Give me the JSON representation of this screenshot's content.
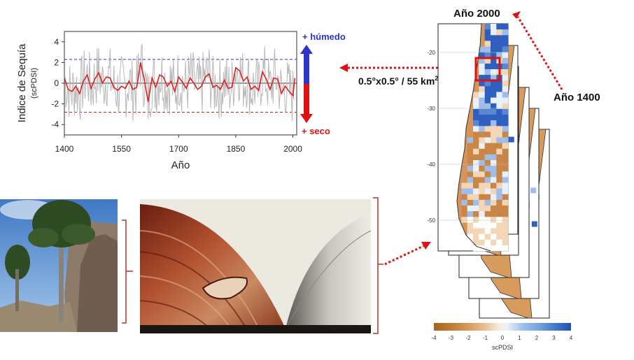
{
  "chart_data": {
    "type": "line",
    "ylabel": "Indice de Sequía",
    "ylabel_sub": "(scPDSI)",
    "xlabel": "Año",
    "xlim": [
      1400,
      2010
    ],
    "ylim": [
      -5,
      5
    ],
    "x_ticks": [
      1400,
      1550,
      1700,
      1850,
      2000
    ],
    "y_ticks": [
      4,
      2,
      0,
      -2,
      -4
    ],
    "wet_threshold": 2.3,
    "dry_threshold": -2.8,
    "wet_label": "+ húmedo",
    "dry_label": "+ seco",
    "series": [
      {
        "color": "#e02020",
        "x": [
          1400,
          1410,
          1420,
          1430,
          1440,
          1450,
          1460,
          1470,
          1480,
          1490,
          1500,
          1510,
          1520,
          1530,
          1540,
          1550,
          1560,
          1570,
          1580,
          1590,
          1600,
          1610,
          1620,
          1630,
          1640,
          1650,
          1660,
          1670,
          1680,
          1690,
          1700,
          1710,
          1720,
          1730,
          1740,
          1750,
          1760,
          1770,
          1780,
          1790,
          1800,
          1810,
          1820,
          1830,
          1840,
          1850,
          1860,
          1870,
          1880,
          1890,
          1900,
          1910,
          1920,
          1930,
          1940,
          1950,
          1960,
          1970,
          1980,
          1990,
          2000,
          2005
        ],
        "y": [
          0.5,
          -0.6,
          -0.8,
          -0.3,
          -1.0,
          0.2,
          0.8,
          -0.5,
          0.4,
          1.0,
          0.0,
          0.6,
          0.5,
          -0.4,
          -0.7,
          -0.3,
          -0.5,
          0.2,
          -0.6,
          -0.4,
          2.0,
          0.3,
          -1.8,
          0.5,
          -0.4,
          0.8,
          0.6,
          -0.3,
          0.2,
          -0.8,
          0.6,
          0.1,
          -0.5,
          0.5,
          0.0,
          -0.6,
          -0.3,
          0.6,
          0.9,
          -0.4,
          -0.2,
          -0.6,
          0.3,
          -0.5,
          -0.4,
          1.5,
          1.2,
          0.2,
          0.6,
          -0.6,
          -0.3,
          -0.7,
          1.1,
          0.4,
          -0.6,
          0.5,
          0.4,
          -1.0,
          -0.3,
          -0.8,
          -1.2,
          0.5
        ]
      }
    ]
  },
  "map": {
    "title_top": "Año 2000",
    "title_bottom": "Año 1400",
    "resolution_label": "0.5°x0.5° / 55 km",
    "resolution_sup": "2",
    "lat_labels": [
      "-20",
      "-30",
      "-40",
      "-50"
    ],
    "colorbar_ticks": [
      "-4",
      "-3",
      "-2",
      "-1",
      "0",
      "1",
      "2",
      "3",
      "4"
    ],
    "colorbar_label": "scPDSI",
    "colorbar_colors": [
      "#a5641f",
      "#c07a34",
      "#d6995c",
      "#e9bf91",
      "#f6e2cc",
      "#ffffff",
      "#d6e4f6",
      "#a9c6ec",
      "#6f9ddc",
      "#3f73c7",
      "#1e4fae"
    ]
  },
  "colors": {
    "raw_series": "#b8b8b8",
    "wet": "#2b35c9",
    "dry": "#e01010",
    "arrow_dotted": "#e01010"
  },
  "photos": {
    "tree": "araucaria-tree-photo",
    "book": "tree-ring-book-photo"
  }
}
